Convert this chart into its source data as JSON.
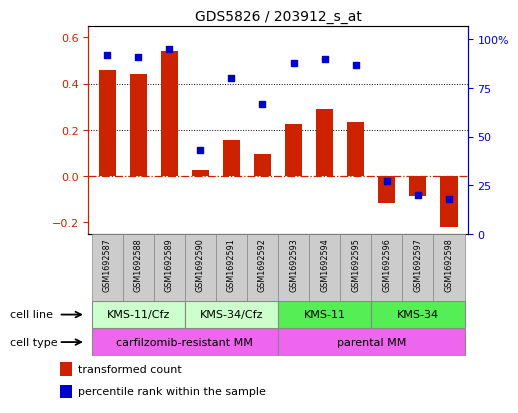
{
  "title": "GDS5826 / 203912_s_at",
  "samples": [
    "GSM1692587",
    "GSM1692588",
    "GSM1692589",
    "GSM1692590",
    "GSM1692591",
    "GSM1692592",
    "GSM1692593",
    "GSM1692594",
    "GSM1692595",
    "GSM1692596",
    "GSM1692597",
    "GSM1692598"
  ],
  "transformed_count": [
    0.46,
    0.44,
    0.54,
    0.025,
    0.155,
    0.095,
    0.225,
    0.29,
    0.235,
    -0.115,
    -0.085,
    -0.22
  ],
  "percentile_rank": [
    92,
    91,
    95,
    43,
    80,
    67,
    88,
    90,
    87,
    27,
    20,
    18
  ],
  "bar_color": "#CC2200",
  "dot_color": "#0000CC",
  "zero_line_color": "#CC2200",
  "dotted_line_color": "#000000",
  "ylim_left": [
    -0.25,
    0.65
  ],
  "ylim_right": [
    0,
    107
  ],
  "yticks_left": [
    -0.2,
    0.0,
    0.2,
    0.4,
    0.6
  ],
  "yticks_right": [
    0,
    25,
    50,
    75,
    100
  ],
  "ytick_labels_right": [
    "0",
    "25",
    "50",
    "75",
    "100%"
  ],
  "cell_line_groups": [
    {
      "label": "KMS-11/Cfz",
      "start": 0,
      "end": 3
    },
    {
      "label": "KMS-34/Cfz",
      "start": 3,
      "end": 6
    },
    {
      "label": "KMS-11",
      "start": 6,
      "end": 9
    },
    {
      "label": "KMS-34",
      "start": 9,
      "end": 12
    }
  ],
  "cell_line_color_light": "#CCFFCC",
  "cell_line_color_dark": "#55EE55",
  "cell_type_groups": [
    {
      "label": "carfilzomib-resistant MM",
      "start": 0,
      "end": 6
    },
    {
      "label": "parental MM",
      "start": 6,
      "end": 12
    }
  ],
  "cell_type_color": "#EE66EE",
  "sample_box_color": "#CCCCCC",
  "legend_bar_label": "transformed count",
  "legend_dot_label": "percentile rank within the sample",
  "cell_line_label": "cell line",
  "cell_type_label": "cell type",
  "bg_color": "#FFFFFF",
  "tick_label_color_left": "#CC2200",
  "tick_label_color_right": "#0000CC"
}
